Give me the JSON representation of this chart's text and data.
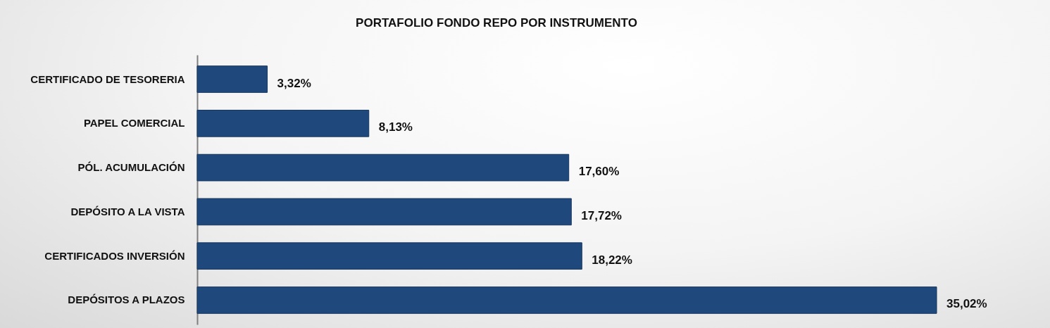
{
  "chart_data": {
    "type": "bar",
    "orientation": "horizontal",
    "title": "PORTAFOLIO FONDO REPO POR INSTRUMENTO",
    "categories": [
      "CERTIFICADO DE TESORERIA",
      "PAPEL COMERCIAL",
      "PÓL. ACUMULACIÓN",
      "DEPÓSITO A LA VISTA",
      "CERTIFICADOS INVERSIÓN",
      "DEPÓSITOS A PLAZOS"
    ],
    "values": [
      3.32,
      8.13,
      17.6,
      17.72,
      18.22,
      35.02
    ],
    "value_labels": [
      "3,32%",
      "8,13%",
      "17,60%",
      "17,72%",
      "18,22%",
      "35,02%"
    ],
    "color": "#1f497d"
  }
}
